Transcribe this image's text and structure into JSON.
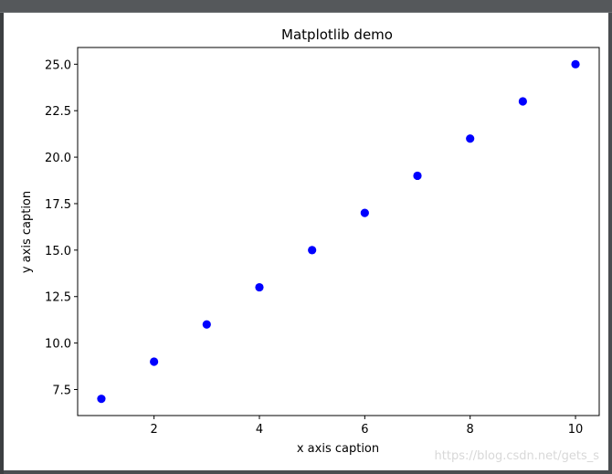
{
  "chart_data": {
    "type": "scatter",
    "title": "Matplotlib demo",
    "xlabel": "x axis caption",
    "ylabel": "y axis caption",
    "x": [
      1,
      2,
      3,
      4,
      5,
      6,
      7,
      8,
      9,
      10
    ],
    "y": [
      7,
      9,
      11,
      13,
      15,
      17,
      19,
      21,
      23,
      25
    ],
    "xlim": [
      0.55,
      10.45
    ],
    "ylim": [
      6.1,
      25.9
    ],
    "xticks": [
      2,
      4,
      6,
      8,
      10
    ],
    "xtick_labels": [
      "2",
      "4",
      "6",
      "8",
      "10"
    ],
    "yticks": [
      7.5,
      10.0,
      12.5,
      15.0,
      17.5,
      20.0,
      22.5,
      25.0
    ],
    "ytick_labels": [
      "7.5",
      "10.0",
      "12.5",
      "15.0",
      "17.5",
      "20.0",
      "22.5",
      "25.0"
    ],
    "grid": false,
    "marker_color": "#0000ff"
  },
  "watermark": "https://blog.csdn.net/gets_s"
}
